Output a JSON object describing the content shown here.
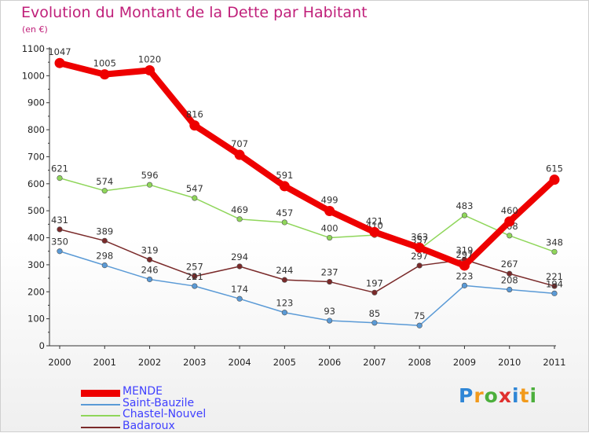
{
  "header": {
    "title": "Evolution du Montant de la Dette par Habitant",
    "subtitle": "(en €)"
  },
  "logo": {
    "letters": [
      "P",
      "r",
      "o",
      "x",
      "i",
      "t",
      "i"
    ],
    "colors": [
      "#2f86d6",
      "#f29a1b",
      "#4caf3c",
      "#e0302e",
      "#2f86d6",
      "#f29a1b",
      "#4caf3c"
    ]
  },
  "chart_data": {
    "type": "line",
    "x": [
      "2000",
      "2001",
      "2002",
      "2003",
      "2004",
      "2005",
      "2006",
      "2007",
      "2008",
      "2009",
      "2010",
      "2011"
    ],
    "ylim": [
      0,
      1100
    ],
    "yticks": [
      "0",
      "100",
      "200",
      "300",
      "400",
      "500",
      "600",
      "700",
      "800",
      "900",
      "1000",
      "1100"
    ],
    "grid": false,
    "legend_position": "bottom-left",
    "series": [
      {
        "name": "Chastel-Nouvel",
        "color": "#8fd65a",
        "values": [
          621,
          574,
          596,
          547,
          469,
          457,
          400,
          410,
          357,
          483,
          408,
          348
        ]
      },
      {
        "name": "Badaroux",
        "color": "#7a2a2a",
        "values": [
          431,
          389,
          319,
          257,
          294,
          244,
          237,
          197,
          297,
          319,
          267,
          221
        ]
      },
      {
        "name": "Saint-Bauzile",
        "color": "#5a9ad6",
        "values": [
          350,
          298,
          246,
          221,
          174,
          123,
          93,
          85,
          75,
          223,
          208,
          194
        ]
      },
      {
        "name": "MENDE",
        "color": "#ee0000",
        "values": [
          1047,
          1005,
          1020,
          816,
          707,
          591,
          499,
          421,
          363,
          297,
          460,
          615
        ]
      }
    ]
  },
  "legend": [
    {
      "label": "MENDE",
      "color": "#ee0000",
      "thickness": 9
    },
    {
      "label": "Saint-Bauzile",
      "color": "#5a9ad6",
      "thickness": 2
    },
    {
      "label": "Chastel-Nouvel",
      "color": "#8fd65a",
      "thickness": 2
    },
    {
      "label": "Badaroux",
      "color": "#7a2a2a",
      "thickness": 2
    }
  ]
}
